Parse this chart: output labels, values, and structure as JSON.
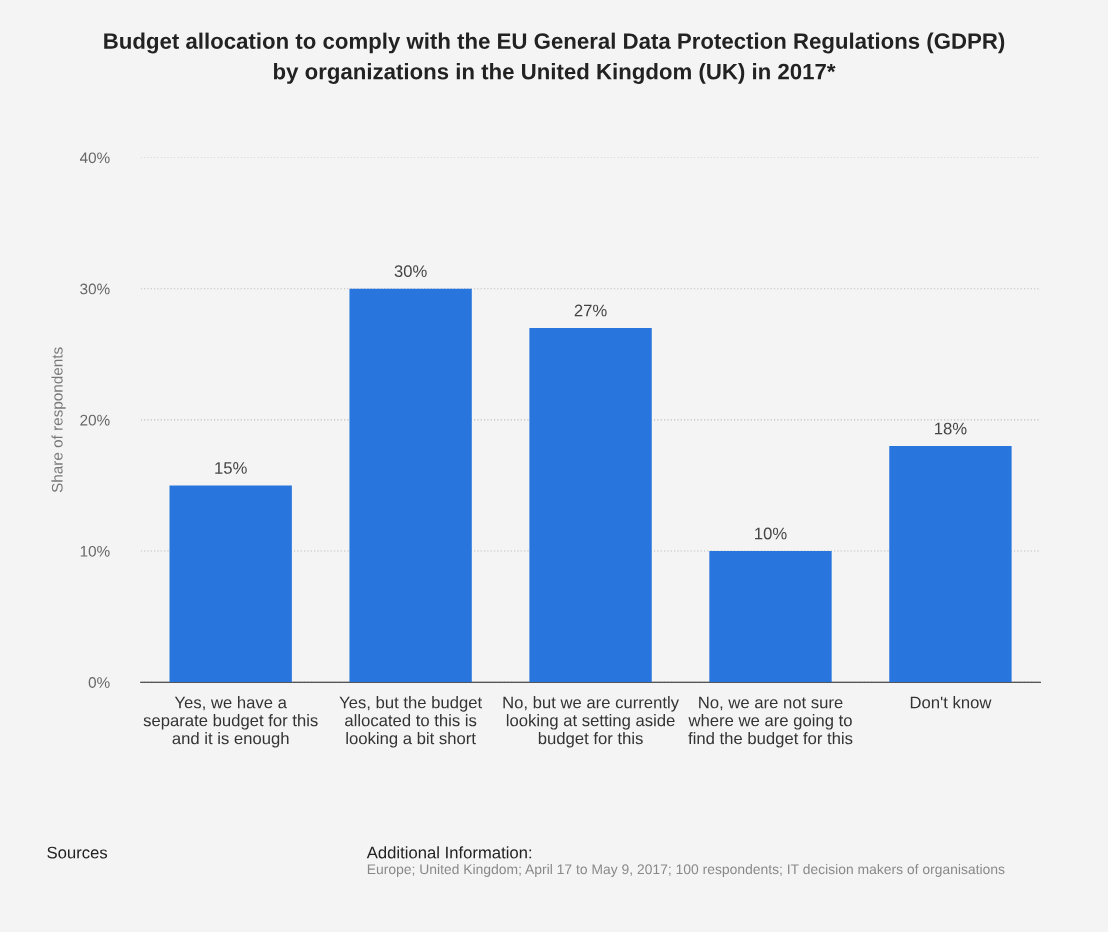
{
  "chart_data": {
    "type": "bar",
    "title": "Budget allocation to comply with the EU General Data Protection Regulations (GDPR)\nby organizations in the United Kingdom (UK) in 2017*",
    "ylabel": "Share of respondents",
    "categories": [
      "Yes, we have a\nseparate budget for this\nand it is enough",
      "Yes, but the budget\nallocated to this is\nlooking a bit short",
      "No, but we are currently\nlooking at setting aside\nbudget for this",
      "No, we are not sure\nwhere we are going to\nfind the budget for this",
      "Don't know"
    ],
    "values": [
      15,
      30,
      27,
      10,
      18
    ],
    "value_labels": [
      "15%",
      "30%",
      "27%",
      "10%",
      "18%"
    ],
    "color": "#2876dd",
    "ylim": [
      0,
      40
    ],
    "yticks": [
      {
        "value": 0,
        "label": "0%"
      },
      {
        "value": 10,
        "label": "10%"
      },
      {
        "value": 20,
        "label": "20%"
      },
      {
        "value": 30,
        "label": "30%"
      },
      {
        "value": 40,
        "label": "40%"
      }
    ],
    "grid": "y",
    "annotations": [
      "Sources",
      "Additional Information:",
      "Europe; United Kingdom; April 17 to May 9, 2017; 100 respondents; IT decision makers of organisations"
    ]
  }
}
